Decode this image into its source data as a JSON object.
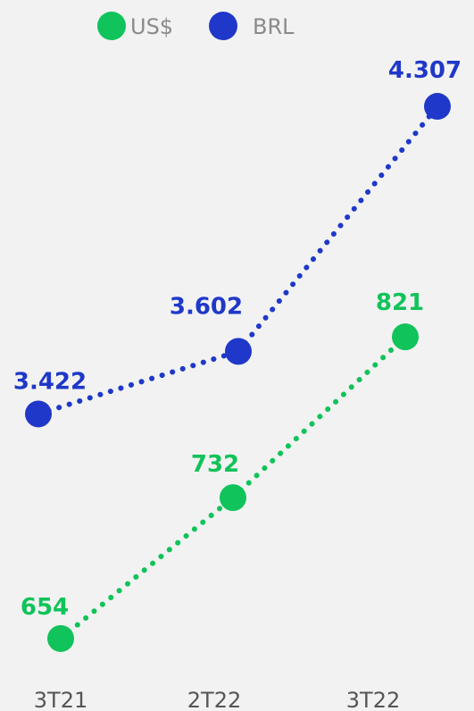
{
  "chart_data": {
    "type": "line",
    "categories": [
      "3T21",
      "2T22",
      "3T22"
    ],
    "series": [
      {
        "name": "US$",
        "key": "usd",
        "values": [
          654,
          732,
          821
        ],
        "labels": [
          "654",
          "732",
          "821"
        ],
        "color": "#10c35a"
      },
      {
        "name": "BRL",
        "key": "brl",
        "values": [
          3422,
          3602,
          4307
        ],
        "labels": [
          "3.422",
          "3.602",
          "4.307"
        ],
        "color": "#1f38c9"
      }
    ],
    "line_style": "dotted",
    "legend_position": "top",
    "grid": false,
    "y_axis_visible": false
  }
}
